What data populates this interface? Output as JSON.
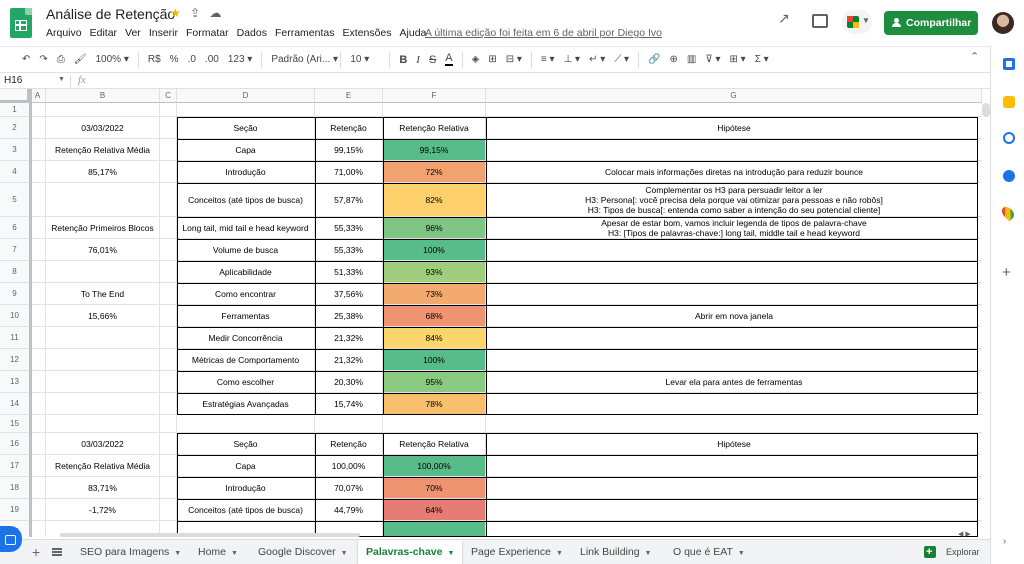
{
  "header": {
    "doc_title": "Análise de Retenção",
    "menu": [
      "Arquivo",
      "Editar",
      "Ver",
      "Inserir",
      "Formatar",
      "Dados",
      "Ferramentas",
      "Extensões",
      "Ajuda"
    ],
    "last_edit": "A última edição foi feita em 6 de abril por Diego Ivo",
    "share_label": "Compartilhar"
  },
  "toolbar": {
    "zoom": "100%",
    "currency": "R$",
    "percent": "%",
    "dec_decrease": ".0",
    "dec_increase": ".00",
    "more_formats": "123",
    "font": "Padrão (Ari...",
    "font_size": "10",
    "bold": "B",
    "italic": "I",
    "strike": "S",
    "text_color": "A",
    "sum": "Σ"
  },
  "formula_bar": {
    "name_box": "H16",
    "fx": "fx",
    "value": ""
  },
  "columns": [
    "",
    "A",
    "B",
    "C",
    "D",
    "E",
    "F",
    "G"
  ],
  "rows": [
    {
      "n": "1",
      "B": "",
      "D": "",
      "E": "",
      "F": "",
      "G": ""
    },
    {
      "n": "2",
      "B": "03/03/2022",
      "D": "Seção",
      "E": "Retenção",
      "F": "Retenção Relativa",
      "G": "Hipótese",
      "hdr": true
    },
    {
      "n": "3",
      "B": "Retenção Relativa Média",
      "D": "Capa",
      "E": "99,15%",
      "F": "99,15%",
      "G": "",
      "color": "#57bb8a"
    },
    {
      "n": "4",
      "B": "85,17%",
      "D": "Introdução",
      "E": "71,00%",
      "F": "72%",
      "G": "Colocar mais informações diretas na introdução para reduzir bounce",
      "color": "#f0a26f"
    },
    {
      "n": "5",
      "B": "",
      "D": "Conceitos (até tipos de busca)",
      "E": "57,87%",
      "F": "82%",
      "G": "Complementar os H3 para persuadir leitor a ler\nH3: Persona[: você precisa dela porque vai otimizar para pessoas e não robôs]\nH3: Tipos de busca[: entenda como saber a intenção do seu potencial cliente]",
      "color": "#fdd06b",
      "tall": true
    },
    {
      "n": "6",
      "B": "Retenção Primeiros Blocos",
      "D": "Long tail, mid tail e head keyword",
      "E": "55,33%",
      "F": "96%",
      "G": "Apesar de estar bom, vamos incluir legenda de tipos de palavra-chave\nH3: [Tipos de palavras-chave:] long tail, middle tail e head keyword",
      "color": "#7fc583"
    },
    {
      "n": "7",
      "B": "76,01%",
      "D": "Volume de busca",
      "E": "55,33%",
      "F": "100%",
      "G": "",
      "color": "#57bb8a"
    },
    {
      "n": "8",
      "B": "",
      "D": "Aplicabilidade",
      "E": "51,33%",
      "F": "93%",
      "G": "",
      "color": "#9fcf7c"
    },
    {
      "n": "9",
      "B": "To The End",
      "D": "Como encontrar",
      "E": "37,56%",
      "F": "73%",
      "G": "",
      "color": "#f3aa6f"
    },
    {
      "n": "10",
      "B": "15,66%",
      "D": "Ferramentas",
      "E": "25,38%",
      "F": "68%",
      "G": "Abrir em nova janela",
      "color": "#ee9471"
    },
    {
      "n": "11",
      "B": "",
      "D": "Medir Concorrência",
      "E": "21,32%",
      "F": "84%",
      "G": "",
      "color": "#fbd66c"
    },
    {
      "n": "12",
      "B": "",
      "D": "Métricas de Comportamento",
      "E": "21,32%",
      "F": "100%",
      "G": "",
      "color": "#57bb8a"
    },
    {
      "n": "13",
      "B": "",
      "D": "Como escolher",
      "E": "20,30%",
      "F": "95%",
      "G": "Levar ela para antes de ferramentas",
      "color": "#8ac980"
    },
    {
      "n": "14",
      "B": "",
      "D": "Estratégias Avançadas",
      "E": "15,74%",
      "F": "78%",
      "G": "",
      "color": "#f8bf6d"
    },
    {
      "n": "15",
      "B": "",
      "D": "",
      "E": "",
      "F": "",
      "G": ""
    },
    {
      "n": "16",
      "B": "03/03/2022",
      "D": "Seção",
      "E": "Retenção",
      "F": "Retenção Relativa",
      "G": "Hipótese",
      "hdr": true
    },
    {
      "n": "17",
      "B": "Retenção Relativa Média",
      "D": "Capa",
      "E": "100,00%",
      "F": "100,00%",
      "G": "",
      "color": "#57bb8a"
    },
    {
      "n": "18",
      "B": "83,71%",
      "D": "Introdução",
      "E": "70,07%",
      "F": "70%",
      "G": "",
      "color": "#ee9471"
    },
    {
      "n": "19",
      "B": "-1,72%",
      "D": "Conceitos (até tipos de busca)",
      "E": "44,79%",
      "F": "64%",
      "G": "",
      "color": "#e67c73"
    },
    {
      "n": "20",
      "B": "",
      "D": "",
      "E": "",
      "F": "",
      "G": "",
      "color": "#57bb8a"
    }
  ],
  "tabs": [
    "SEO para Imagens",
    "Home",
    "Google Discover",
    "Palavras-chave",
    "Page Experience",
    "Link Building",
    "O que é EAT"
  ],
  "active_tab": "Palavras-chave",
  "explore_label": "Explorar"
}
